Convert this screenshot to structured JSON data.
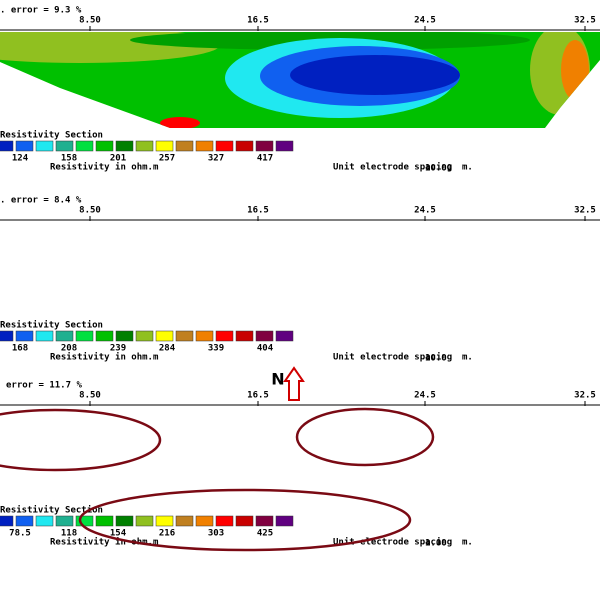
{
  "panels": [
    {
      "error": ". error = 9.3 %",
      "ticks": [
        "8.50",
        "16.5",
        "24.5",
        "32.5"
      ],
      "legend_title": "Resistivity Section",
      "legend_values": [
        "124",
        "158",
        "201",
        "257",
        "327",
        "417"
      ],
      "unit_label": "Resistivity in ohm.m",
      "spacing_label": "Unit electrode spacing",
      "spacing_value": "10.00",
      "spacing_unit": "m."
    },
    {
      "error": ". error = 8.4 %",
      "ticks": [
        "8.50",
        "16.5",
        "24.5",
        "32.5"
      ],
      "legend_title": "Resistivity Section",
      "legend_values": [
        "168",
        "208",
        "239",
        "284",
        "339",
        "404"
      ],
      "unit_label": "Resistivity in ohm.m",
      "spacing_label": "Unit electrode spacing",
      "spacing_value": "10.0",
      "spacing_unit": "m."
    },
    {
      "error": "error = 11.7 %",
      "ticks": [
        "8.50",
        "16.5",
        "24.5",
        "32.5"
      ],
      "legend_title": "Resistivity Section",
      "legend_values": [
        "78.5",
        "118",
        "154",
        "216",
        "303",
        "425"
      ],
      "unit_label": "Resistivity in ohm.m",
      "spacing_label": "Unit electrode spacing",
      "spacing_value": "1.00",
      "spacing_unit": "m."
    }
  ],
  "north": "N"
}
